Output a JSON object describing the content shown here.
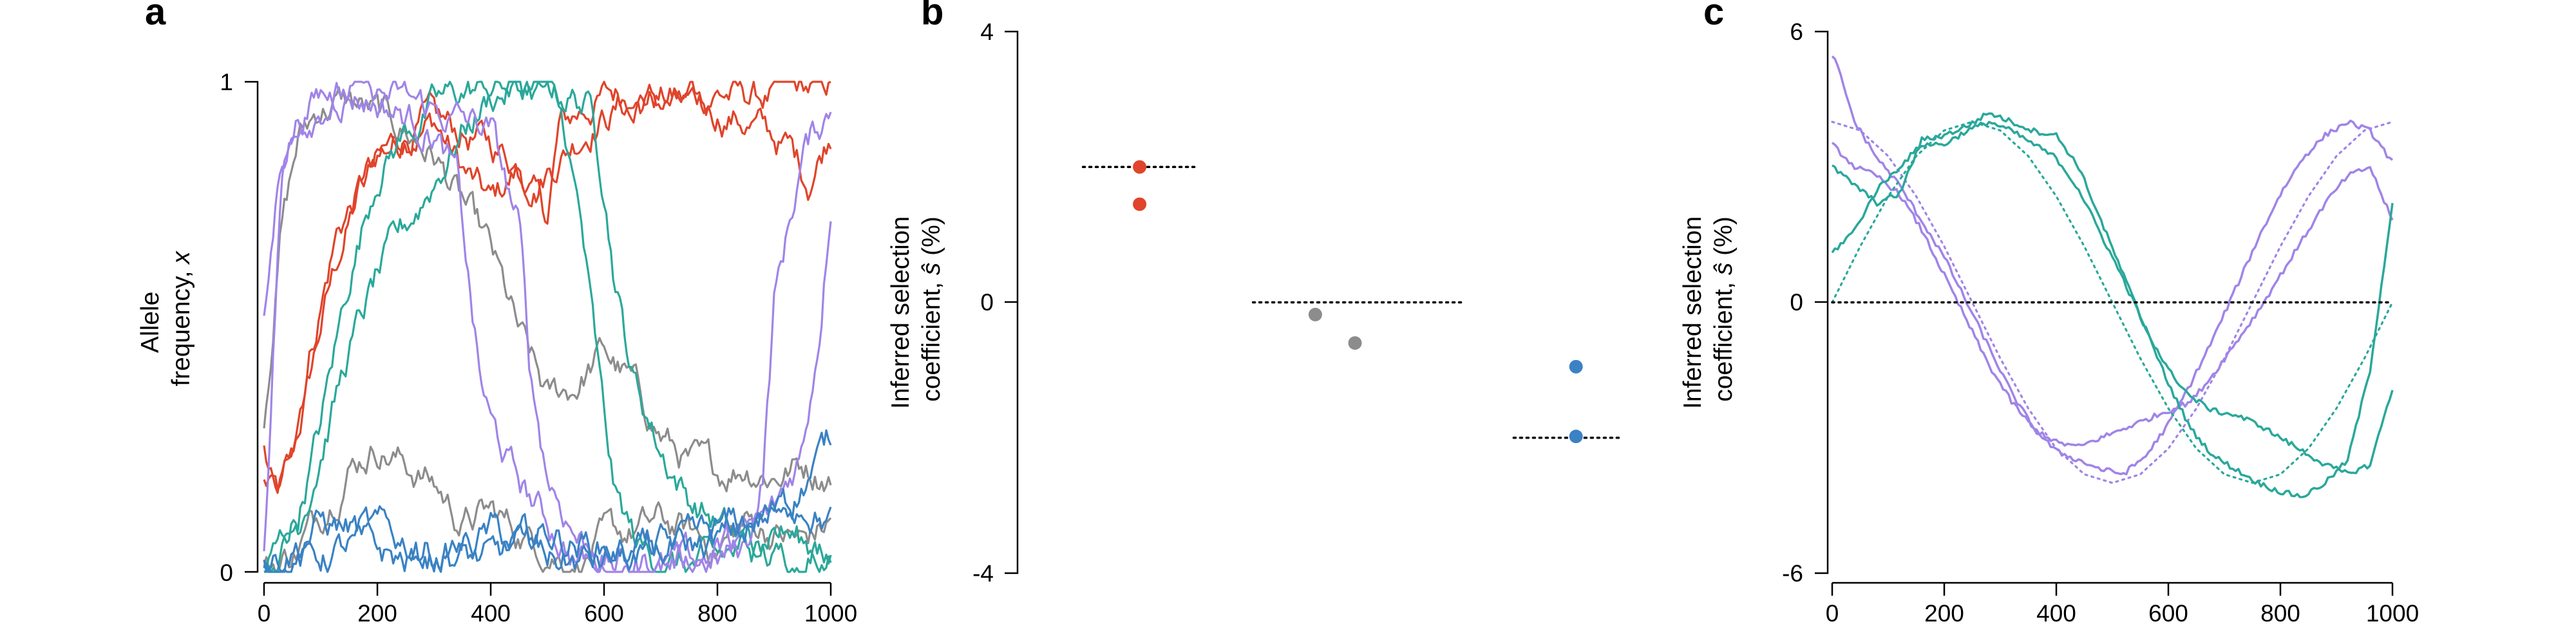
{
  "colors": {
    "red": "#e0442b",
    "gray": "#8c8c8c",
    "teal": "#2aa89a",
    "purple": "#a084e8",
    "blue": "#3a82c4",
    "reference": "#000000"
  },
  "chart_data": [
    {
      "panel": "a",
      "type": "line",
      "xlabel": "",
      "ylabel_line1": "Allele",
      "ylabel_line2_prefix": "frequency, ",
      "ylabel_var": "x",
      "xlim": [
        0,
        1000
      ],
      "ylim": [
        0,
        1
      ],
      "xticks": [
        "0",
        "200",
        "400",
        "600",
        "800",
        "1000"
      ],
      "yticks": [
        "0",
        "1"
      ],
      "series": [
        {
          "color": "red",
          "x": [
            0,
            20,
            50,
            100,
            130,
            170,
            200,
            250,
            300,
            350,
            400,
            450,
            500,
            520,
            560,
            600,
            650,
            700,
            750,
            800,
            850,
            900,
            950,
            1000
          ],
          "y": [
            0.25,
            0.14,
            0.22,
            0.5,
            0.64,
            0.78,
            0.85,
            0.9,
            0.92,
            0.82,
            0.75,
            0.82,
            0.72,
            0.9,
            0.94,
            0.97,
            0.98,
            0.97,
            0.96,
            0.98,
            0.97,
            0.97,
            0.98,
            0.99
          ]
        },
        {
          "color": "red",
          "x": [
            0,
            30,
            80,
            130,
            180,
            230,
            280,
            330,
            380,
            430,
            480,
            530,
            580,
            630,
            680,
            730,
            780,
            830,
            880,
            930,
            960,
            1000
          ],
          "y": [
            0.2,
            0.15,
            0.45,
            0.7,
            0.8,
            0.87,
            0.92,
            0.9,
            0.88,
            0.85,
            0.8,
            0.86,
            0.92,
            0.95,
            0.96,
            0.95,
            0.94,
            0.93,
            0.9,
            0.86,
            0.8,
            0.9
          ]
        },
        {
          "color": "gray",
          "x": [
            0,
            30,
            60,
            100,
            150,
            200,
            250,
            300,
            350,
            400,
            450,
            500,
            550,
            600,
            650,
            700,
            750,
            800,
            850,
            900,
            950,
            1000
          ],
          "y": [
            0.3,
            0.7,
            0.88,
            0.95,
            0.96,
            0.93,
            0.9,
            0.85,
            0.75,
            0.65,
            0.48,
            0.35,
            0.38,
            0.45,
            0.38,
            0.28,
            0.22,
            0.2,
            0.22,
            0.2,
            0.22,
            0.2
          ]
        },
        {
          "color": "gray",
          "x": [
            0,
            30,
            60,
            100,
            150,
            200,
            250,
            300,
            350,
            400,
            450,
            500,
            550,
            600,
            650,
            700,
            750,
            800,
            850,
            900,
            950,
            1000
          ],
          "y": [
            0,
            0.02,
            0.05,
            0.12,
            0.22,
            0.26,
            0.22,
            0.18,
            0.1,
            0.12,
            0.08,
            0.05,
            0.02,
            0.06,
            0.08,
            0.1,
            0.08,
            0.05,
            0.1,
            0.08,
            0.06,
            0.1
          ]
        },
        {
          "color": "teal",
          "x": [
            0,
            60,
            100,
            150,
            200,
            250,
            300,
            350,
            400,
            450,
            500,
            550,
            580,
            600,
            620,
            650,
            700,
            750,
            800,
            850,
            900,
            950,
            1000
          ],
          "y": [
            0,
            0.12,
            0.3,
            0.6,
            0.82,
            0.9,
            0.95,
            0.98,
            0.99,
            0.99,
            0.98,
            0.97,
            0.94,
            0.8,
            0.6,
            0.4,
            0.25,
            0.15,
            0.1,
            0.05,
            0.02,
            0.04,
            0.06
          ]
        },
        {
          "color": "teal",
          "x": [
            0,
            60,
            100,
            150,
            200,
            250,
            300,
            350,
            400,
            450,
            500,
            530,
            560,
            580,
            600,
            620,
            660,
            700,
            750,
            800,
            850,
            900,
            950,
            1000
          ],
          "y": [
            0,
            0.1,
            0.25,
            0.45,
            0.6,
            0.7,
            0.8,
            0.9,
            0.97,
            0.99,
            0.98,
            0.9,
            0.7,
            0.5,
            0.3,
            0.15,
            0.05,
            0.02,
            0.01,
            0.02,
            0.05,
            0.1,
            0.06,
            0.02
          ]
        },
        {
          "color": "purple",
          "x": [
            0,
            30,
            60,
            100,
            150,
            200,
            250,
            300,
            340,
            360,
            380,
            400,
            440,
            500,
            550,
            600,
            700,
            800,
            850,
            880,
            900,
            950,
            1000
          ],
          "y": [
            0.5,
            0.85,
            0.93,
            0.97,
            0.98,
            0.96,
            0.93,
            0.9,
            0.8,
            0.6,
            0.4,
            0.3,
            0.2,
            0.1,
            0.03,
            0.01,
            0.01,
            0.02,
            0.05,
            0.2,
            0.55,
            0.85,
            0.95
          ]
        },
        {
          "color": "purple",
          "x": [
            0,
            30,
            60,
            100,
            150,
            200,
            250,
            300,
            350,
            400,
            450,
            470,
            500,
            550,
            600,
            650,
            700,
            750,
            800,
            850,
            900,
            950,
            980,
            1000
          ],
          "y": [
            0.05,
            0.8,
            0.92,
            0.96,
            0.98,
            0.97,
            0.96,
            0.94,
            0.92,
            0.9,
            0.7,
            0.4,
            0.2,
            0.08,
            0.02,
            0.01,
            0.02,
            0.03,
            0.05,
            0.07,
            0.12,
            0.25,
            0.5,
            0.77
          ]
        },
        {
          "color": "blue",
          "x": [
            0,
            50,
            100,
            150,
            200,
            250,
            300,
            350,
            400,
            450,
            500,
            550,
            600,
            650,
            700,
            750,
            800,
            850,
            900,
            950,
            1000
          ],
          "y": [
            0.02,
            0.05,
            0.1,
            0.09,
            0.08,
            0.06,
            0.05,
            0.03,
            0.02,
            0.05,
            0.08,
            0.06,
            0.05,
            0.04,
            0.05,
            0.05,
            0.06,
            0.08,
            0.12,
            0.18,
            0.27
          ]
        },
        {
          "color": "blue",
          "x": [
            0,
            50,
            100,
            150,
            200,
            250,
            300,
            350,
            400,
            450,
            500,
            550,
            600,
            650,
            700,
            750,
            800,
            850,
            900,
            950,
            1000
          ],
          "y": [
            0.01,
            0.02,
            0.03,
            0.05,
            0.04,
            0.02,
            0.03,
            0.05,
            0.08,
            0.06,
            0.03,
            0.02,
            0.02,
            0.03,
            0.04,
            0.05,
            0.08,
            0.1,
            0.12,
            0.15,
            0.1
          ]
        }
      ]
    },
    {
      "panel": "b",
      "type": "scatter",
      "ylabel_line1": "Inferred selection",
      "ylabel_line2_prefix": "coefficient, ",
      "ylabel_var": "ŝ",
      "ylabel_suffix": " (%)",
      "ylim": [
        -4,
        4
      ],
      "yticks": [
        "4",
        "0",
        "-4"
      ],
      "x_axis_shown": false,
      "points": [
        {
          "x": 0.17,
          "y": 2.0,
          "color": "red"
        },
        {
          "x": 0.17,
          "y": 1.45,
          "color": "red"
        },
        {
          "x": 0.48,
          "y": -0.18,
          "color": "gray"
        },
        {
          "x": 0.55,
          "y": -0.6,
          "color": "gray"
        },
        {
          "x": 0.94,
          "y": -0.95,
          "color": "blue"
        },
        {
          "x": 0.94,
          "y": -1.98,
          "color": "blue"
        }
      ],
      "true_values": [
        {
          "x0": 0.07,
          "x1": 0.27,
          "y": 2.0
        },
        {
          "x0": 0.37,
          "x1": 0.74,
          "y": 0.0
        },
        {
          "x0": 0.83,
          "x1": 1.02,
          "y": -2.0
        }
      ]
    },
    {
      "panel": "c",
      "type": "line",
      "ylabel_line1": "Inferred selection",
      "ylabel_line2_prefix": "coefficient, ",
      "ylabel_var": "ŝ",
      "ylabel_suffix": " (%)",
      "xlim": [
        0,
        1000
      ],
      "ylim": [
        -6,
        6
      ],
      "xticks": [
        "0",
        "200",
        "400",
        "600",
        "800",
        "1000"
      ],
      "yticks": [
        "6",
        "0",
        "-6"
      ],
      "series": [
        {
          "color": "purple",
          "x": [
            0,
            10,
            40,
            80,
            120,
            160,
            200,
            240,
            280,
            320,
            360,
            400,
            440,
            480,
            520,
            560,
            600,
            640,
            680,
            720,
            760,
            800,
            840,
            880,
            920,
            960,
            1000
          ],
          "y": [
            5.5,
            5.2,
            4.0,
            3.2,
            2.6,
            1.8,
            1.0,
            0.0,
            -1.0,
            -2.0,
            -2.8,
            -3.3,
            -3.5,
            -3.7,
            -3.8,
            -3.4,
            -2.7,
            -1.8,
            -0.8,
            0.3,
            1.4,
            2.4,
            3.2,
            3.7,
            4.0,
            3.8,
            3.1
          ]
        },
        {
          "color": "purple",
          "x": [
            0,
            40,
            80,
            120,
            160,
            200,
            240,
            280,
            320,
            360,
            400,
            440,
            480,
            520,
            560,
            600,
            640,
            680,
            720,
            760,
            800,
            840,
            880,
            920,
            960,
            1000
          ],
          "y": [
            3.5,
            3.0,
            2.8,
            2.4,
            1.6,
            0.6,
            -0.4,
            -1.4,
            -2.2,
            -2.8,
            -3.1,
            -3.2,
            -3.0,
            -2.8,
            -2.6,
            -2.4,
            -2.2,
            -1.6,
            -0.9,
            -0.2,
            0.6,
            1.4,
            2.2,
            2.8,
            3.0,
            1.8
          ]
        },
        {
          "color": "purple",
          "dashed": true,
          "x": [
            0,
            50,
            100,
            150,
            200,
            250,
            300,
            350,
            400,
            450,
            500,
            550,
            600,
            650,
            700,
            750,
            800,
            850,
            900,
            950,
            1000
          ],
          "y": [
            4.0,
            3.81,
            3.24,
            2.35,
            1.24,
            0.0,
            -1.24,
            -2.35,
            -3.24,
            -3.81,
            -4.0,
            -3.81,
            -3.24,
            -2.35,
            -1.24,
            0.0,
            1.24,
            2.35,
            3.24,
            3.81,
            4.0
          ]
        },
        {
          "color": "teal",
          "x": [
            0,
            40,
            80,
            120,
            160,
            200,
            240,
            280,
            320,
            360,
            400,
            440,
            480,
            520,
            560,
            600,
            640,
            680,
            720,
            760,
            800,
            840,
            880,
            920,
            960,
            1000
          ],
          "y": [
            1.1,
            1.6,
            2.5,
            3.0,
            3.5,
            3.5,
            3.8,
            4.0,
            3.8,
            3.5,
            3.2,
            2.5,
            1.5,
            0.5,
            -0.6,
            -1.8,
            -2.8,
            -3.4,
            -3.7,
            -4.0,
            -4.2,
            -4.3,
            -4.0,
            -3.5,
            -1.5,
            2.2
          ]
        },
        {
          "color": "teal",
          "x": [
            0,
            40,
            80,
            120,
            160,
            200,
            240,
            280,
            320,
            360,
            400,
            440,
            480,
            520,
            560,
            600,
            640,
            680,
            720,
            760,
            800,
            840,
            880,
            920,
            960,
            1000
          ],
          "y": [
            3.0,
            2.6,
            2.2,
            2.4,
            3.6,
            3.7,
            3.9,
            4.2,
            4.0,
            3.8,
            3.7,
            3.0,
            1.8,
            0.6,
            -0.6,
            -1.5,
            -2.1,
            -2.4,
            -2.5,
            -2.7,
            -3.0,
            -3.3,
            -3.6,
            -3.8,
            -3.6,
            -1.9
          ]
        },
        {
          "color": "teal",
          "dashed": true,
          "x": [
            0,
            50,
            100,
            150,
            200,
            250,
            300,
            350,
            400,
            450,
            500,
            550,
            600,
            650,
            700,
            750,
            800,
            850,
            900,
            950,
            1000
          ],
          "y": [
            0.0,
            1.24,
            2.35,
            3.24,
            3.81,
            4.0,
            3.81,
            3.24,
            2.35,
            1.24,
            0.0,
            -1.24,
            -2.35,
            -3.24,
            -3.81,
            -4.0,
            -3.81,
            -3.24,
            -2.35,
            -1.24,
            0.0
          ]
        },
        {
          "color": "reference",
          "dashed": true,
          "x": [
            0,
            1000
          ],
          "y": [
            0,
            0
          ]
        }
      ]
    }
  ]
}
